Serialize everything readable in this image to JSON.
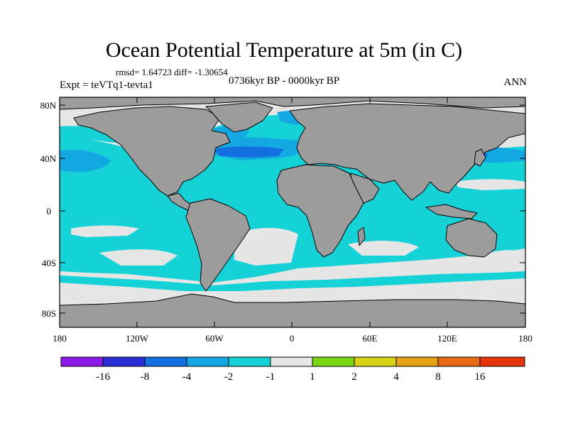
{
  "title": "Ocean Potential Temperature at 5m (in C)",
  "stats": "rmsd= 1.64723 diff= -1.30654",
  "experiment": "Expt = teVTq1-tevta1",
  "period": "0736kyr BP - 0000kyr BP",
  "season": "ANN",
  "axes": {
    "lat_labels": [
      "80N",
      "40N",
      "0",
      "40S",
      "80S"
    ],
    "lon_labels": [
      "180",
      "120W",
      "60W",
      "0",
      "60E",
      "120E",
      "180"
    ]
  },
  "colorbar": {
    "labels": [
      "-16",
      "-8",
      "-4",
      "-2",
      "-1",
      "1",
      "2",
      "4",
      "8",
      "16"
    ],
    "colors": [
      "#8a1be6",
      "#2c2fd8",
      "#1470e0",
      "#14a8e2",
      "#14d2d6",
      "#e6e6e6",
      "#7ad614",
      "#d8d214",
      "#e6a014",
      "#e66a14",
      "#e6340a"
    ]
  },
  "colors": {
    "land": "#9c9c9c",
    "ocean_neutral": "#e6e6e6",
    "cyan": "#14d2d6",
    "sky": "#14a8e2",
    "blue": "#1470e0",
    "deep_blue": "#2c2fd8"
  }
}
